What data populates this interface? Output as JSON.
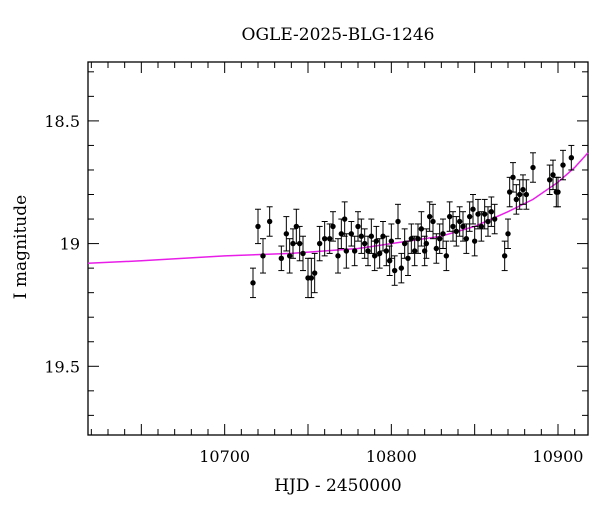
{
  "chart_data": {
    "type": "scatter",
    "title": "OGLE-2025-BLG-1246",
    "xlabel": "HJD - 2450000",
    "ylabel": "I magnitude",
    "xlim": [
      10618,
      10918
    ],
    "ylim": [
      19.78,
      18.26
    ],
    "y_inverted": true,
    "x_major_ticks": [
      10700,
      10800,
      10900
    ],
    "x_tick_labels": [
      "10700",
      "10800",
      "10900"
    ],
    "y_major_ticks": [
      18.5,
      19,
      19.5
    ],
    "y_tick_labels": [
      "18.5",
      "19",
      "19.5"
    ],
    "grid": false,
    "colors": {
      "points": "#000000",
      "model": "#e81ee8",
      "axes": "#000000"
    },
    "series": [
      {
        "type": "errorbar-scatter",
        "points": [
          {
            "x": 10717,
            "y": 19.16,
            "err": 0.06
          },
          {
            "x": 10720,
            "y": 18.93,
            "err": 0.07
          },
          {
            "x": 10723,
            "y": 19.05,
            "err": 0.07
          },
          {
            "x": 10727,
            "y": 18.91,
            "err": 0.06
          },
          {
            "x": 10734,
            "y": 19.06,
            "err": 0.05
          },
          {
            "x": 10737,
            "y": 18.96,
            "err": 0.07
          },
          {
            "x": 10739,
            "y": 19.05,
            "err": 0.07
          },
          {
            "x": 10741,
            "y": 19.0,
            "err": 0.06
          },
          {
            "x": 10743,
            "y": 18.93,
            "err": 0.07
          },
          {
            "x": 10745,
            "y": 19.0,
            "err": 0.07
          },
          {
            "x": 10747,
            "y": 19.04,
            "err": 0.07
          },
          {
            "x": 10750,
            "y": 19.14,
            "err": 0.08
          },
          {
            "x": 10752,
            "y": 19.14,
            "err": 0.08
          },
          {
            "x": 10754,
            "y": 19.12,
            "err": 0.08
          },
          {
            "x": 10757,
            "y": 19.0,
            "err": 0.07
          },
          {
            "x": 10760,
            "y": 18.98,
            "err": 0.07
          },
          {
            "x": 10763,
            "y": 18.98,
            "err": 0.06
          },
          {
            "x": 10765,
            "y": 18.93,
            "err": 0.06
          },
          {
            "x": 10768,
            "y": 19.05,
            "err": 0.07
          },
          {
            "x": 10770,
            "y": 18.96,
            "err": 0.06
          },
          {
            "x": 10772,
            "y": 18.9,
            "err": 0.07
          },
          {
            "x": 10773,
            "y": 19.03,
            "err": 0.07
          },
          {
            "x": 10776,
            "y": 18.96,
            "err": 0.05
          },
          {
            "x": 10778,
            "y": 19.03,
            "err": 0.06
          },
          {
            "x": 10780,
            "y": 18.93,
            "err": 0.06
          },
          {
            "x": 10782,
            "y": 18.97,
            "err": 0.07
          },
          {
            "x": 10784,
            "y": 19.0,
            "err": 0.06
          },
          {
            "x": 10786,
            "y": 19.03,
            "err": 0.06
          },
          {
            "x": 10788,
            "y": 18.97,
            "err": 0.07
          },
          {
            "x": 10790,
            "y": 19.05,
            "err": 0.06
          },
          {
            "x": 10791,
            "y": 18.99,
            "err": 0.06
          },
          {
            "x": 10793,
            "y": 19.04,
            "err": 0.06
          },
          {
            "x": 10795,
            "y": 18.97,
            "err": 0.06
          },
          {
            "x": 10797,
            "y": 19.03,
            "err": 0.06
          },
          {
            "x": 10799,
            "y": 19.07,
            "err": 0.06
          },
          {
            "x": 10800,
            "y": 18.99,
            "err": 0.07
          },
          {
            "x": 10802,
            "y": 19.11,
            "err": 0.06
          },
          {
            "x": 10804,
            "y": 18.91,
            "err": 0.07
          },
          {
            "x": 10806,
            "y": 19.1,
            "err": 0.06
          },
          {
            "x": 10808,
            "y": 19.0,
            "err": 0.06
          },
          {
            "x": 10810,
            "y": 19.06,
            "err": 0.07
          },
          {
            "x": 10812,
            "y": 18.98,
            "err": 0.06
          },
          {
            "x": 10814,
            "y": 19.03,
            "err": 0.06
          },
          {
            "x": 10816,
            "y": 18.98,
            "err": 0.06
          },
          {
            "x": 10818,
            "y": 18.94,
            "err": 0.07
          },
          {
            "x": 10820,
            "y": 19.03,
            "err": 0.06
          },
          {
            "x": 10821,
            "y": 19.0,
            "err": 0.06
          },
          {
            "x": 10823,
            "y": 18.89,
            "err": 0.06
          },
          {
            "x": 10825,
            "y": 18.91,
            "err": 0.07
          },
          {
            "x": 10827,
            "y": 19.02,
            "err": 0.06
          },
          {
            "x": 10829,
            "y": 18.98,
            "err": 0.06
          },
          {
            "x": 10831,
            "y": 18.96,
            "err": 0.06
          },
          {
            "x": 10833,
            "y": 19.05,
            "err": 0.06
          },
          {
            "x": 10835,
            "y": 18.89,
            "err": 0.06
          },
          {
            "x": 10837,
            "y": 18.93,
            "err": 0.06
          },
          {
            "x": 10839,
            "y": 18.95,
            "err": 0.06
          },
          {
            "x": 10841,
            "y": 18.91,
            "err": 0.06
          },
          {
            "x": 10843,
            "y": 18.93,
            "err": 0.06
          },
          {
            "x": 10845,
            "y": 18.98,
            "err": 0.06
          },
          {
            "x": 10847,
            "y": 18.89,
            "err": 0.06
          },
          {
            "x": 10849,
            "y": 18.86,
            "err": 0.06
          },
          {
            "x": 10850,
            "y": 18.99,
            "err": 0.06
          },
          {
            "x": 10852,
            "y": 18.88,
            "err": 0.06
          },
          {
            "x": 10854,
            "y": 18.93,
            "err": 0.06
          },
          {
            "x": 10856,
            "y": 18.88,
            "err": 0.06
          },
          {
            "x": 10858,
            "y": 18.91,
            "err": 0.06
          },
          {
            "x": 10860,
            "y": 18.87,
            "err": 0.06
          },
          {
            "x": 10862,
            "y": 18.9,
            "err": 0.06
          },
          {
            "x": 10868,
            "y": 19.05,
            "err": 0.06
          },
          {
            "x": 10870,
            "y": 18.96,
            "err": 0.06
          },
          {
            "x": 10871,
            "y": 18.79,
            "err": 0.06
          },
          {
            "x": 10873,
            "y": 18.73,
            "err": 0.06
          },
          {
            "x": 10875,
            "y": 18.82,
            "err": 0.06
          },
          {
            "x": 10877,
            "y": 18.8,
            "err": 0.06
          },
          {
            "x": 10879,
            "y": 18.78,
            "err": 0.06
          },
          {
            "x": 10881,
            "y": 18.8,
            "err": 0.06
          },
          {
            "x": 10885,
            "y": 18.69,
            "err": 0.06
          },
          {
            "x": 10895,
            "y": 18.74,
            "err": 0.06
          },
          {
            "x": 10897,
            "y": 18.72,
            "err": 0.06
          },
          {
            "x": 10899,
            "y": 18.79,
            "err": 0.06
          },
          {
            "x": 10900,
            "y": 18.79,
            "err": 0.06
          },
          {
            "x": 10903,
            "y": 18.68,
            "err": 0.06
          },
          {
            "x": 10908,
            "y": 18.65,
            "err": 0.05
          }
        ]
      },
      {
        "type": "line",
        "points": [
          {
            "x": 10618,
            "y": 19.08
          },
          {
            "x": 10650,
            "y": 19.07
          },
          {
            "x": 10700,
            "y": 19.05
          },
          {
            "x": 10740,
            "y": 19.04
          },
          {
            "x": 10780,
            "y": 19.02
          },
          {
            "x": 10810,
            "y": 18.99
          },
          {
            "x": 10830,
            "y": 18.97
          },
          {
            "x": 10850,
            "y": 18.93
          },
          {
            "x": 10870,
            "y": 18.87
          },
          {
            "x": 10885,
            "y": 18.82
          },
          {
            "x": 10900,
            "y": 18.75
          },
          {
            "x": 10910,
            "y": 18.69
          },
          {
            "x": 10918,
            "y": 18.63
          }
        ]
      }
    ]
  }
}
